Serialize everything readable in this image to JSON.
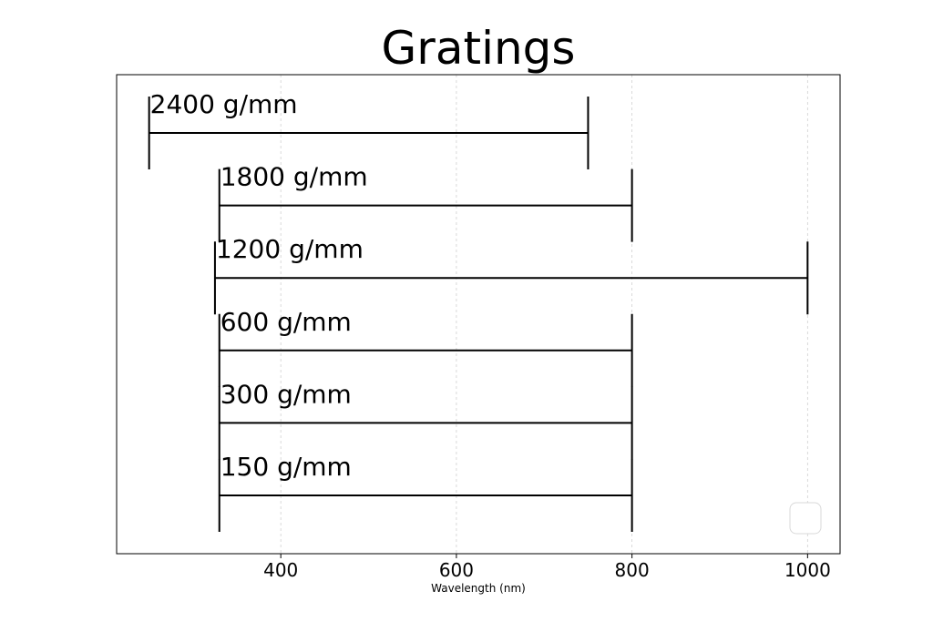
{
  "chart_data": {
    "type": "range",
    "title": "Gratings",
    "xlabel": "Wavelength (nm)",
    "ylabel": "",
    "xlim": [
      213,
      1037
    ],
    "xticks": [
      400,
      600,
      800,
      1000
    ],
    "grid": "vertical-dashed",
    "legend": "bottom-right-empty",
    "series": [
      {
        "label": "2400 g/mm",
        "start": 250,
        "end": 750
      },
      {
        "label": "1800 g/mm",
        "start": 330,
        "end": 800
      },
      {
        "label": "1200 g/mm",
        "start": 325,
        "end": 1000
      },
      {
        "label": "600 g/mm",
        "start": 330,
        "end": 800
      },
      {
        "label": "300 g/mm",
        "start": 330,
        "end": 800
      },
      {
        "label": "150 g/mm",
        "start": 330,
        "end": 800
      }
    ]
  }
}
